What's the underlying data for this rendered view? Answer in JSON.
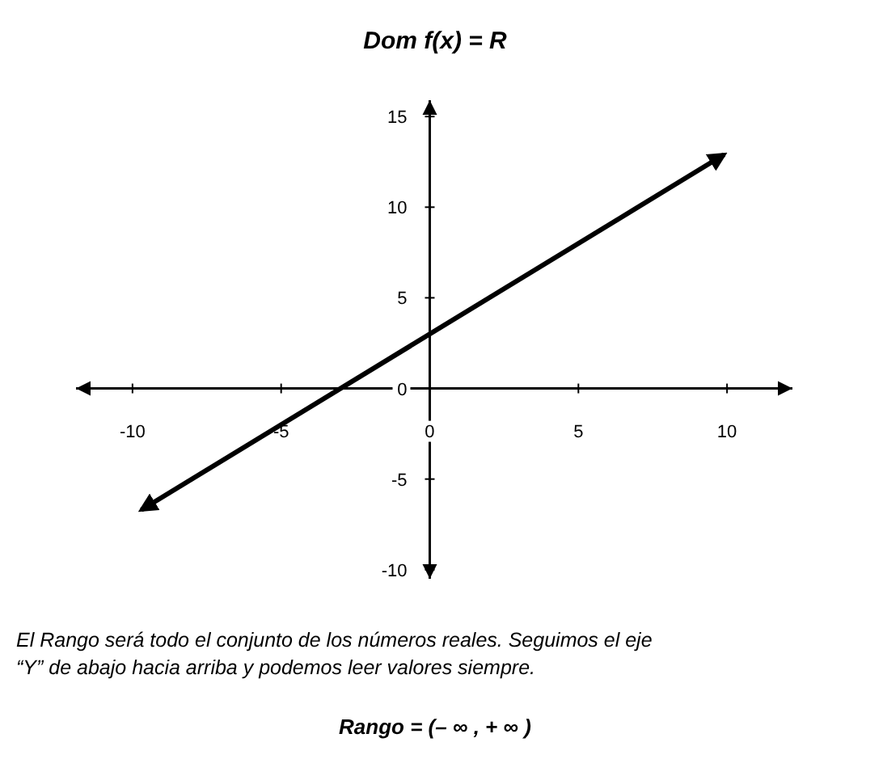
{
  "chart_data": {
    "type": "line",
    "title": "Dom f(x) = R",
    "series": [
      {
        "color": "#000000",
        "x": [
          -9.7,
          9.9
        ],
        "values": [
          -6.7,
          12.9
        ]
      }
    ],
    "xlim": [
      -11.9,
      12.2
    ],
    "ylim": [
      -10.5,
      15.9
    ],
    "xticks": [
      -10,
      -5,
      0,
      5,
      10
    ],
    "yticks": [
      -10,
      -5,
      0,
      5,
      10,
      15
    ],
    "grid": false,
    "marker": "none",
    "line_style": "solid",
    "annotations": [
      "El Rango será todo el conjunto de los números reales. Seguimos el eje",
      "“Y” de abajo hacia arriba y podemos leer valores siempre.",
      "Rango =  (– ∞ ,  + ∞ )"
    ]
  }
}
